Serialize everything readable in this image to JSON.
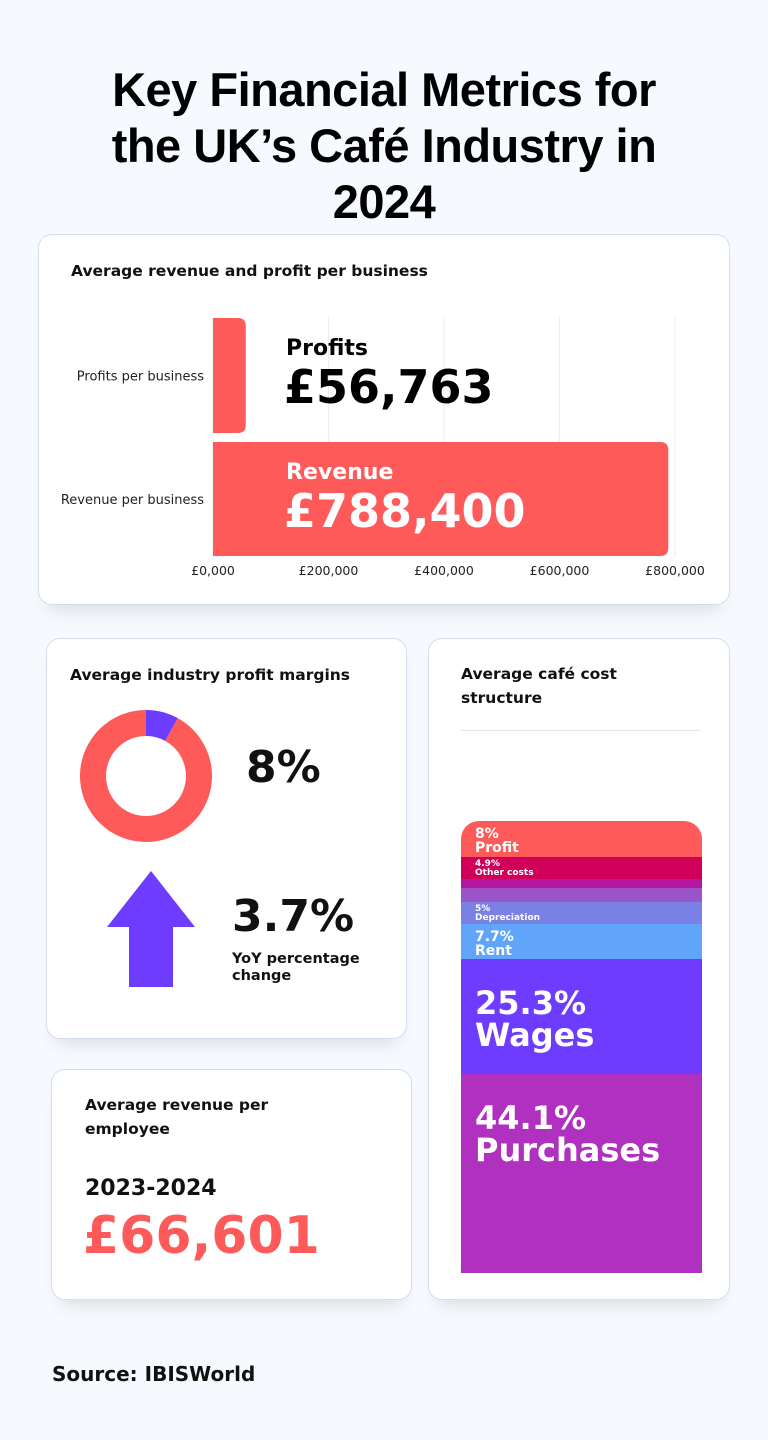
{
  "title": "Key Financial Metrics for the UK’s Café Industry in 2024",
  "colors": {
    "coral": "#ff5a5a",
    "purple": "#6e3cff",
    "magenta": "#b030c0"
  },
  "chart_data": [
    {
      "type": "bar",
      "orientation": "horizontal",
      "title": "Average revenue and profit per business",
      "categories": [
        "Profits per business",
        "Revenue per business"
      ],
      "values": [
        56763,
        788400
      ],
      "data_labels": [
        {
          "name": "Profits",
          "value": "£56,763"
        },
        {
          "name": "Revenue",
          "value": "£788,400"
        }
      ],
      "x_ticks": [
        "£0,000",
        "£200,000",
        "£400,000",
        "£600,000",
        "£800,000"
      ],
      "xlim": [
        0,
        800000
      ],
      "grid": true
    },
    {
      "type": "pie",
      "title": "Average industry profit margins",
      "donut": true,
      "values": [
        8,
        92
      ],
      "colors": [
        "#6e3cff",
        "#ff5a5a"
      ],
      "label": "8%"
    },
    {
      "type": "bar",
      "stacked": true,
      "title": "Average café cost structure",
      "segments": [
        {
          "pct": "8%",
          "name": "Profit",
          "value": 8,
          "color": "#ff5a5a"
        },
        {
          "pct": "4.9%",
          "name": "Other costs",
          "value": 4.9,
          "color": "#d0005a"
        },
        {
          "pct": "",
          "name": "",
          "value": 2,
          "color": "#b5179e"
        },
        {
          "pct": "",
          "name": "",
          "value": 3,
          "color": "#9a55c8"
        },
        {
          "pct": "5%",
          "name": "Depreciation",
          "value": 5,
          "color": "#7b80e4"
        },
        {
          "pct": "7.7%",
          "name": "Rent",
          "value": 7.7,
          "color": "#60a5fa"
        },
        {
          "pct": "25.3%",
          "name": "Wages",
          "value": 25.3,
          "color": "#6e3cff"
        },
        {
          "pct": "44.1%",
          "name": "Purchases",
          "value": 44.1,
          "color": "#b030c0"
        }
      ]
    }
  ],
  "yoy": {
    "value": "3.7%",
    "label": "YoY percentage change"
  },
  "employee": {
    "title": "Average revenue per employee",
    "period": "2023-2024",
    "value": "£66,601"
  },
  "source": "Source: IBISWorld"
}
